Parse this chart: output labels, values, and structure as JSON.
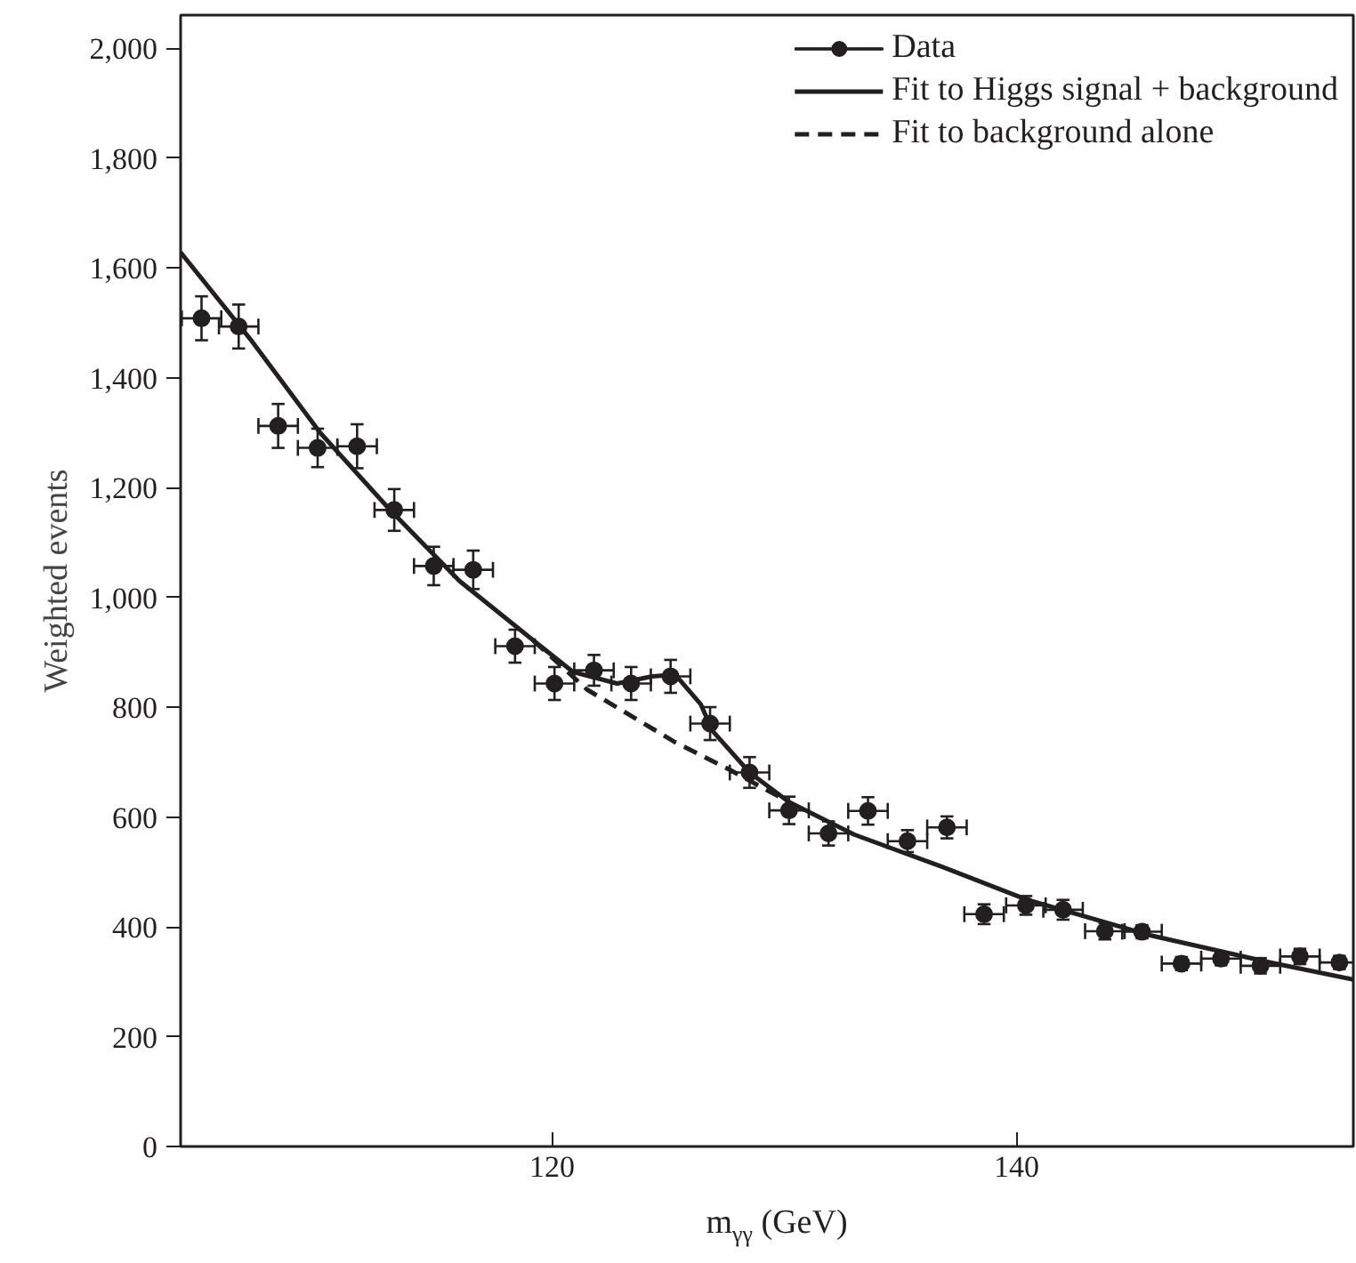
{
  "chart_data": {
    "type": "scatter",
    "xlabel": "m$_{γγ}$ (GeV)",
    "ylabel": "Weighted events",
    "xlim": [
      104,
      154.5
    ],
    "ylim": [
      0,
      2060
    ],
    "xticks": [
      120,
      140
    ],
    "yticks": [
      {
        "value": 0,
        "label": "0"
      },
      {
        "value": 200,
        "label": "200"
      },
      {
        "value": 400,
        "label": "400"
      },
      {
        "value": 600,
        "label": "600"
      },
      {
        "value": 800,
        "label": "800"
      },
      {
        "value": 1000,
        "label": "1,000"
      },
      {
        "value": 1200,
        "label": "1,200"
      },
      {
        "value": 1400,
        "label": "1,400"
      },
      {
        "value": 1600,
        "label": "1,600"
      },
      {
        "value": 1800,
        "label": "1,800"
      },
      {
        "value": 2000,
        "label": "2,000"
      }
    ],
    "grid": false,
    "legend": "top right",
    "series": [
      {
        "name": "Data",
        "marker": "circle",
        "color": "#231f20",
        "x": [
          104.9,
          106.5,
          108.2,
          109.9,
          111.6,
          113.2,
          114.9,
          116.6,
          118.4,
          120.1,
          121.8,
          123.4,
          125.1,
          126.8,
          128.5,
          130.2,
          131.9,
          133.6,
          135.3,
          137.0,
          138.6,
          140.4,
          142.0,
          143.8,
          145.4,
          147.1,
          148.8,
          150.5,
          152.2,
          153.9
        ],
        "values": [
          1508,
          1493,
          1312,
          1272,
          1275,
          1159,
          1057,
          1050,
          911,
          843,
          867,
          843,
          856,
          770,
          681,
          612,
          570,
          611,
          556,
          581,
          423,
          439,
          431,
          392,
          391,
          333,
          342,
          329,
          346,
          335
        ],
        "errors": [
          40,
          40,
          40,
          35,
          40,
          38,
          35,
          35,
          30,
          30,
          28,
          30,
          30,
          30,
          28,
          25,
          22,
          25,
          20,
          20,
          18,
          17,
          18,
          15,
          12,
          12,
          12,
          14,
          14,
          12
        ],
        "xerrors": [
          0.85,
          0.85,
          0.85,
          0.85,
          0.85,
          0.85,
          0.85,
          0.85,
          0.85,
          0.85,
          0.85,
          0.85,
          0.85,
          0.85,
          0.85,
          0.85,
          0.85,
          0.85,
          0.85,
          0.85,
          0.85,
          0.85,
          0.85,
          0.85,
          0.85,
          0.85,
          0.85,
          0.85,
          0.85,
          0.85
        ]
      },
      {
        "name": "Fit to Higgs signal + background",
        "type": "line",
        "line_style": "solid",
        "color": "#231f20",
        "x": [
          104.0,
          107,
          110,
          113,
          116,
          119.2,
          120.9,
          122.8,
          124.3,
          125.3,
          126.4,
          126.9,
          128.5,
          130.2,
          133.0,
          136.8,
          140.4,
          145.7,
          150.8,
          154.5
        ],
        "values": [
          1628,
          1470,
          1300,
          1160,
          1030,
          921,
          864,
          843,
          856,
          859,
          805,
          757,
          681,
          627,
          568,
          509,
          450,
          385,
          336,
          304
        ]
      },
      {
        "name": "Fit to background alone",
        "type": "line",
        "line_style": "dashed",
        "color": "#231f20",
        "x": [
          119.2,
          121.5,
          123.4,
          125.3,
          127.6,
          130.2
        ],
        "values": [
          921,
          832,
          784,
          736,
          687,
          627
        ]
      }
    ]
  }
}
